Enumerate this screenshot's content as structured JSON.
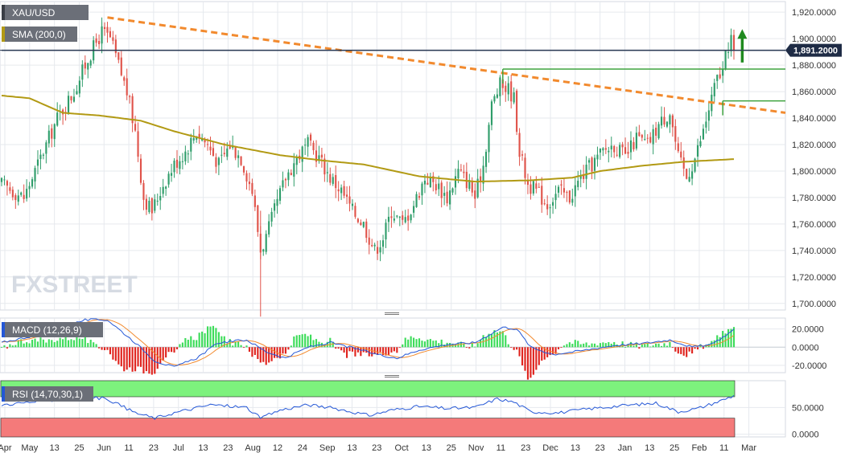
{
  "chart_data": [
    {
      "type": "candlestick",
      "panel": "price",
      "symbol_label": "XAU/USD",
      "current_price_label": "1,891.2000",
      "current_price": 1891.2,
      "ylim": [
        1695,
        1928
      ],
      "y_ticks": [
        1700,
        1720,
        1740,
        1760,
        1780,
        1800,
        1820,
        1840,
        1860,
        1880,
        1900,
        1920
      ],
      "y_tick_labels": [
        "1,700.0000",
        "1,720.0000",
        "1,740.0000",
        "1,760.0000",
        "1,780.0000",
        "1,800.0000",
        "1,820.0000",
        "1,840.0000",
        "1,860.0000",
        "1,880.0000",
        "1,900.0000",
        "1,920.0000"
      ],
      "grid": true,
      "x_tick_labels": [
        "Apr",
        "May",
        "13",
        "25",
        "Jun",
        "11",
        "23",
        "Jul",
        "13",
        "23",
        "Aug",
        "12",
        "24",
        "Sep",
        "13",
        "23",
        "Oct",
        "13",
        "25",
        "Nov",
        "11",
        "23",
        "Dec",
        "13",
        "23",
        "Jan",
        "13",
        "25",
        "Feb",
        "11",
        "Mar"
      ],
      "close_anchors": [
        {
          "t": 0,
          "c": 1790
        },
        {
          "t": 8,
          "c": 1780
        },
        {
          "t": 12,
          "c": 1800
        },
        {
          "t": 20,
          "c": 1840
        },
        {
          "t": 26,
          "c": 1860
        },
        {
          "t": 31,
          "c": 1885
        },
        {
          "t": 36,
          "c": 1905
        },
        {
          "t": 39,
          "c": 1900
        },
        {
          "t": 42,
          "c": 1880
        },
        {
          "t": 45,
          "c": 1860
        },
        {
          "t": 48,
          "c": 1830
        },
        {
          "t": 51,
          "c": 1780
        },
        {
          "t": 54,
          "c": 1770
        },
        {
          "t": 58,
          "c": 1790
        },
        {
          "t": 62,
          "c": 1805
        },
        {
          "t": 66,
          "c": 1815
        },
        {
          "t": 70,
          "c": 1830
        },
        {
          "t": 74,
          "c": 1820
        },
        {
          "t": 78,
          "c": 1805
        },
        {
          "t": 82,
          "c": 1820
        },
        {
          "t": 86,
          "c": 1810
        },
        {
          "t": 90,
          "c": 1785
        },
        {
          "t": 93,
          "c": 1740
        },
        {
          "t": 95,
          "c": 1750
        },
        {
          "t": 98,
          "c": 1770
        },
        {
          "t": 102,
          "c": 1795
        },
        {
          "t": 106,
          "c": 1810
        },
        {
          "t": 110,
          "c": 1820
        },
        {
          "t": 114,
          "c": 1810
        },
        {
          "t": 118,
          "c": 1795
        },
        {
          "t": 122,
          "c": 1785
        },
        {
          "t": 126,
          "c": 1770
        },
        {
          "t": 130,
          "c": 1760
        },
        {
          "t": 134,
          "c": 1740
        },
        {
          "t": 137,
          "c": 1750
        },
        {
          "t": 140,
          "c": 1770
        },
        {
          "t": 144,
          "c": 1760
        },
        {
          "t": 148,
          "c": 1775
        },
        {
          "t": 152,
          "c": 1795
        },
        {
          "t": 156,
          "c": 1790
        },
        {
          "t": 160,
          "c": 1780
        },
        {
          "t": 164,
          "c": 1800
        },
        {
          "t": 168,
          "c": 1790
        },
        {
          "t": 170,
          "c": 1780
        },
        {
          "t": 173,
          "c": 1805
        },
        {
          "t": 176,
          "c": 1850
        },
        {
          "t": 179,
          "c": 1865
        },
        {
          "t": 182,
          "c": 1862
        },
        {
          "t": 184,
          "c": 1855
        },
        {
          "t": 186,
          "c": 1815
        },
        {
          "t": 189,
          "c": 1790
        },
        {
          "t": 192,
          "c": 1785
        },
        {
          "t": 196,
          "c": 1775
        },
        {
          "t": 200,
          "c": 1785
        },
        {
          "t": 204,
          "c": 1780
        },
        {
          "t": 208,
          "c": 1795
        },
        {
          "t": 212,
          "c": 1805
        },
        {
          "t": 216,
          "c": 1815
        },
        {
          "t": 220,
          "c": 1820
        },
        {
          "t": 224,
          "c": 1810
        },
        {
          "t": 228,
          "c": 1825
        },
        {
          "t": 232,
          "c": 1820
        },
        {
          "t": 236,
          "c": 1835
        },
        {
          "t": 240,
          "c": 1845
        },
        {
          "t": 243,
          "c": 1810
        },
        {
          "t": 246,
          "c": 1795
        },
        {
          "t": 249,
          "c": 1810
        },
        {
          "t": 252,
          "c": 1830
        },
        {
          "t": 255,
          "c": 1855
        },
        {
          "t": 257,
          "c": 1870
        },
        {
          "t": 259,
          "c": 1875
        },
        {
          "t": 261,
          "c": 1895
        },
        {
          "t": 262,
          "c": 1902
        },
        {
          "t": 263,
          "c": 1891
        }
      ],
      "bar_count": 264,
      "notable_levels": {
        "high": 1916,
        "low": 1690
      }
    },
    {
      "type": "line",
      "panel": "price",
      "indicator_label": "SMA (200,0)",
      "points": [
        {
          "t": 0,
          "v": 1857
        },
        {
          "t": 10,
          "v": 1855
        },
        {
          "t": 22,
          "v": 1844
        },
        {
          "t": 35,
          "v": 1842
        },
        {
          "t": 50,
          "v": 1838
        },
        {
          "t": 62,
          "v": 1830
        },
        {
          "t": 80,
          "v": 1820
        },
        {
          "t": 100,
          "v": 1812
        },
        {
          "t": 115,
          "v": 1808
        },
        {
          "t": 130,
          "v": 1805
        },
        {
          "t": 150,
          "v": 1796
        },
        {
          "t": 170,
          "v": 1792
        },
        {
          "t": 190,
          "v": 1793
        },
        {
          "t": 205,
          "v": 1795
        },
        {
          "t": 215,
          "v": 1800
        },
        {
          "t": 230,
          "v": 1804
        },
        {
          "t": 245,
          "v": 1807
        },
        {
          "t": 263,
          "v": 1809
        }
      ]
    },
    {
      "type": "annotation",
      "panel": "price",
      "items": [
        {
          "kind": "trendline",
          "style": "dashed",
          "color": "#f28a2e",
          "from": {
            "t": 38,
            "v": 1916
          },
          "to": {
            "t": 295,
            "v": 1844
          }
        },
        {
          "kind": "horizontal",
          "color": "#3fa33f",
          "from": {
            "t": 180,
            "v": 1877
          },
          "to": {
            "t": 285,
            "v": 1877
          }
        },
        {
          "kind": "horizontal",
          "color": "#3fa33f",
          "from": {
            "t": 259,
            "v": 1853
          },
          "to": {
            "t": 285,
            "v": 1853
          }
        },
        {
          "kind": "horizontal",
          "color": "#2b3a55",
          "from": {
            "t": 0,
            "v": 1891.2
          },
          "to": {
            "t": 285,
            "v": 1891.2
          }
        },
        {
          "kind": "arrow-up",
          "color": "#1f8a1f",
          "from": {
            "t": 266,
            "v": 1882
          },
          "to": {
            "t": 266,
            "v": 1906
          }
        }
      ]
    },
    {
      "type": "bar+line",
      "panel": "macd",
      "indicator_label": "MACD (12,26,9)",
      "ylim": [
        -28,
        32
      ],
      "y_ticks": [
        -20,
        0,
        20
      ],
      "y_tick_labels": [
        "-20.0000",
        "0.0000",
        "20.0000"
      ],
      "macd_anchors": [
        {
          "t": 0,
          "v": 5
        },
        {
          "t": 15,
          "v": 15
        },
        {
          "t": 30,
          "v": 30
        },
        {
          "t": 38,
          "v": 30
        },
        {
          "t": 48,
          "v": 5
        },
        {
          "t": 55,
          "v": -15
        },
        {
          "t": 62,
          "v": -22
        },
        {
          "t": 70,
          "v": -12
        },
        {
          "t": 78,
          "v": 5
        },
        {
          "t": 88,
          "v": 8
        },
        {
          "t": 95,
          "v": -5
        },
        {
          "t": 102,
          "v": -12
        },
        {
          "t": 110,
          "v": 0
        },
        {
          "t": 118,
          "v": 5
        },
        {
          "t": 125,
          "v": 0
        },
        {
          "t": 135,
          "v": -8
        },
        {
          "t": 142,
          "v": -12
        },
        {
          "t": 150,
          "v": -3
        },
        {
          "t": 160,
          "v": 3
        },
        {
          "t": 170,
          "v": 5
        },
        {
          "t": 180,
          "v": 22
        },
        {
          "t": 185,
          "v": 20
        },
        {
          "t": 190,
          "v": 0
        },
        {
          "t": 198,
          "v": -8
        },
        {
          "t": 208,
          "v": -4
        },
        {
          "t": 220,
          "v": 2
        },
        {
          "t": 230,
          "v": 4
        },
        {
          "t": 240,
          "v": 8
        },
        {
          "t": 248,
          "v": 0
        },
        {
          "t": 255,
          "v": 3
        },
        {
          "t": 263,
          "v": 19
        }
      ],
      "signal_lag": 6
    },
    {
      "type": "line",
      "panel": "rsi",
      "indicator_label": "RSI (14,70,30,1)",
      "ylim": [
        -5,
        100
      ],
      "y_ticks": [
        0,
        50
      ],
      "y_tick_labels": [
        "0.0000",
        "50.0000"
      ],
      "overbought": 70,
      "oversold": 30,
      "zone_colors": {
        "overbought": "#7df27d",
        "oversold": "#f47a7a"
      },
      "rsi_anchors": [
        {
          "t": 0,
          "v": 55
        },
        {
          "t": 15,
          "v": 62
        },
        {
          "t": 30,
          "v": 70
        },
        {
          "t": 38,
          "v": 66
        },
        {
          "t": 48,
          "v": 40
        },
        {
          "t": 55,
          "v": 30
        },
        {
          "t": 62,
          "v": 40
        },
        {
          "t": 75,
          "v": 55
        },
        {
          "t": 88,
          "v": 50
        },
        {
          "t": 93,
          "v": 30
        },
        {
          "t": 100,
          "v": 45
        },
        {
          "t": 110,
          "v": 55
        },
        {
          "t": 120,
          "v": 48
        },
        {
          "t": 132,
          "v": 35
        },
        {
          "t": 140,
          "v": 45
        },
        {
          "t": 150,
          "v": 52
        },
        {
          "t": 160,
          "v": 48
        },
        {
          "t": 170,
          "v": 50
        },
        {
          "t": 178,
          "v": 66
        },
        {
          "t": 184,
          "v": 60
        },
        {
          "t": 190,
          "v": 42
        },
        {
          "t": 200,
          "v": 40
        },
        {
          "t": 210,
          "v": 47
        },
        {
          "t": 222,
          "v": 53
        },
        {
          "t": 235,
          "v": 58
        },
        {
          "t": 243,
          "v": 42
        },
        {
          "t": 250,
          "v": 48
        },
        {
          "t": 258,
          "v": 62
        },
        {
          "t": 263,
          "v": 72
        }
      ]
    }
  ],
  "watermark": "FXSTREET",
  "colors": {
    "bull": "#2f9d6a",
    "bear": "#e0534a",
    "sma": "#b29a14",
    "macd_line": "#2457d6",
    "signal_line": "#f28a2e",
    "hist_pos": "#3ddc5a",
    "hist_neg": "#e0241e",
    "rsi_line": "#2457d6",
    "grid": "#e6e9ee",
    "axis_text": "#333333",
    "price_tag": "#1e2b45"
  }
}
